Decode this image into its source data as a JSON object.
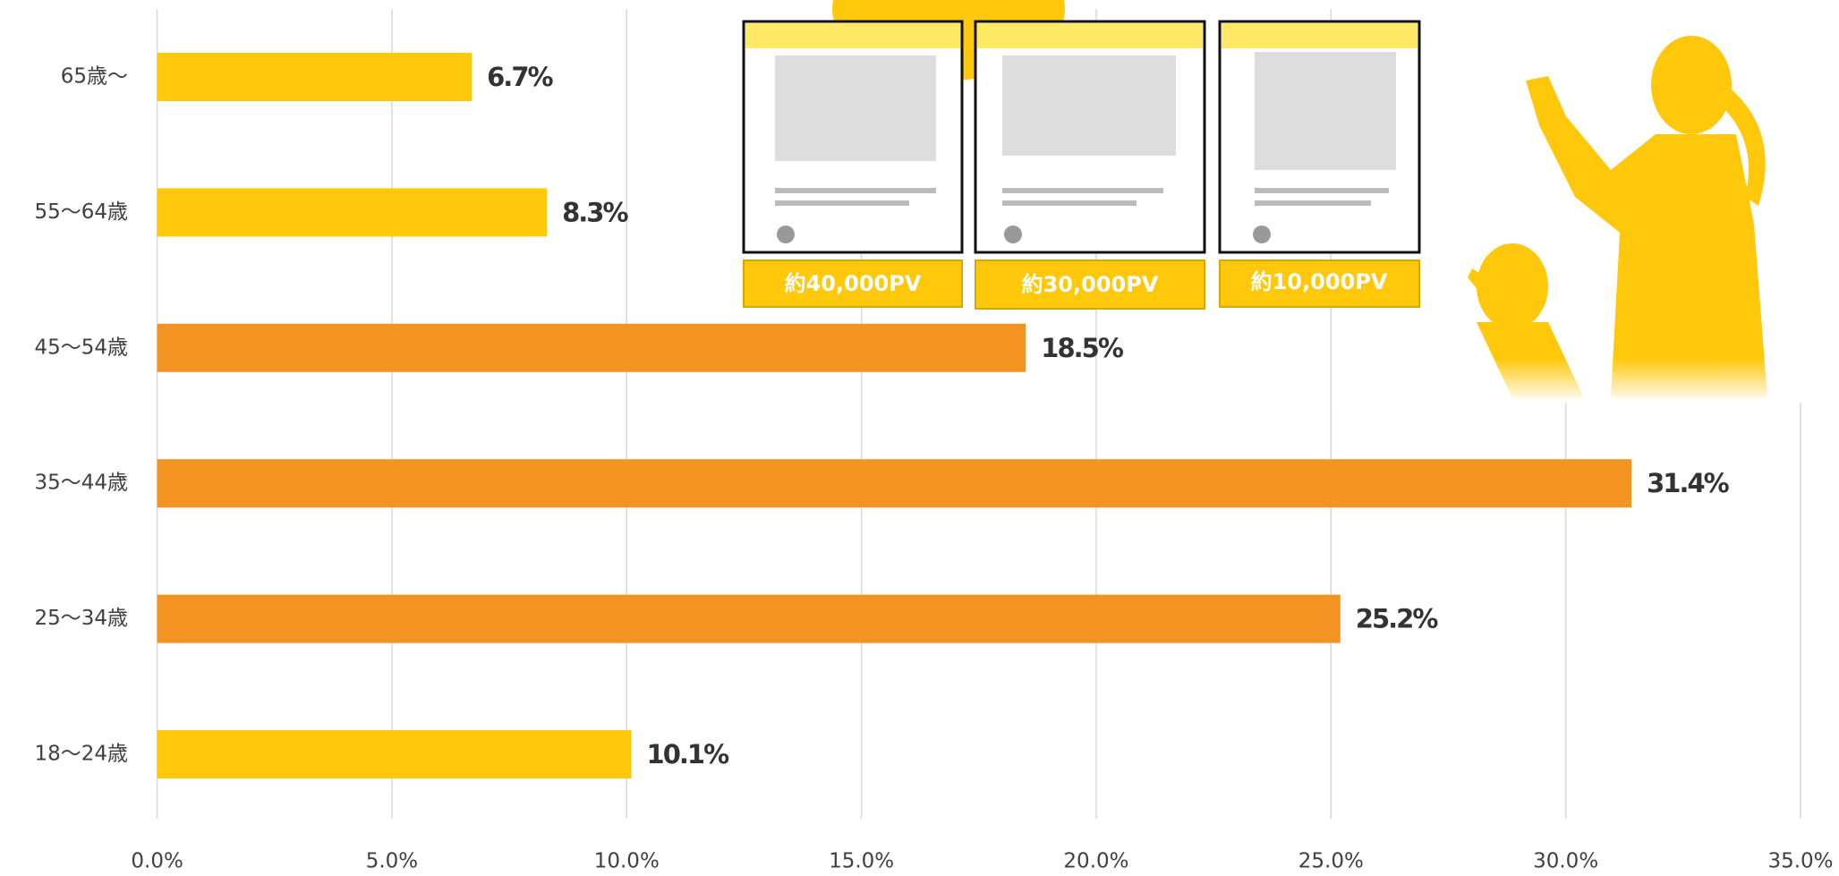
{
  "chart_data": {
    "type": "hbar",
    "categories": [
      "65歳〜",
      "55〜64歳",
      "45〜54歳",
      "35〜44歳",
      "25〜34歳",
      "18〜24歳"
    ],
    "values": [
      6.7,
      8.3,
      18.5,
      31.4,
      25.2,
      10.1
    ],
    "value_labels": [
      "6.7%",
      "8.3%",
      "18.5%",
      "31.4%",
      "25.2%",
      "10.1%"
    ],
    "colors": [
      "#FFC80A",
      "#FFC80A",
      "#F39422",
      "#F39422",
      "#F39422",
      "#FFC80A"
    ],
    "xlim": [
      0,
      35
    ],
    "xticks": [
      {
        "value": 0,
        "label": "0.0%"
      },
      {
        "value": 5,
        "label": "5.0%"
      },
      {
        "value": 10,
        "label": "10.0%"
      },
      {
        "value": 15,
        "label": "15.0%"
      },
      {
        "value": 20,
        "label": "20.0%"
      },
      {
        "value": 25,
        "label": "25.0%"
      },
      {
        "value": 30,
        "label": "30.0%"
      },
      {
        "value": 35,
        "label": "35.0%"
      }
    ],
    "grid": true,
    "annotations": [
      "約40,000PV",
      "約30,000PV",
      "約10,000PV"
    ]
  }
}
